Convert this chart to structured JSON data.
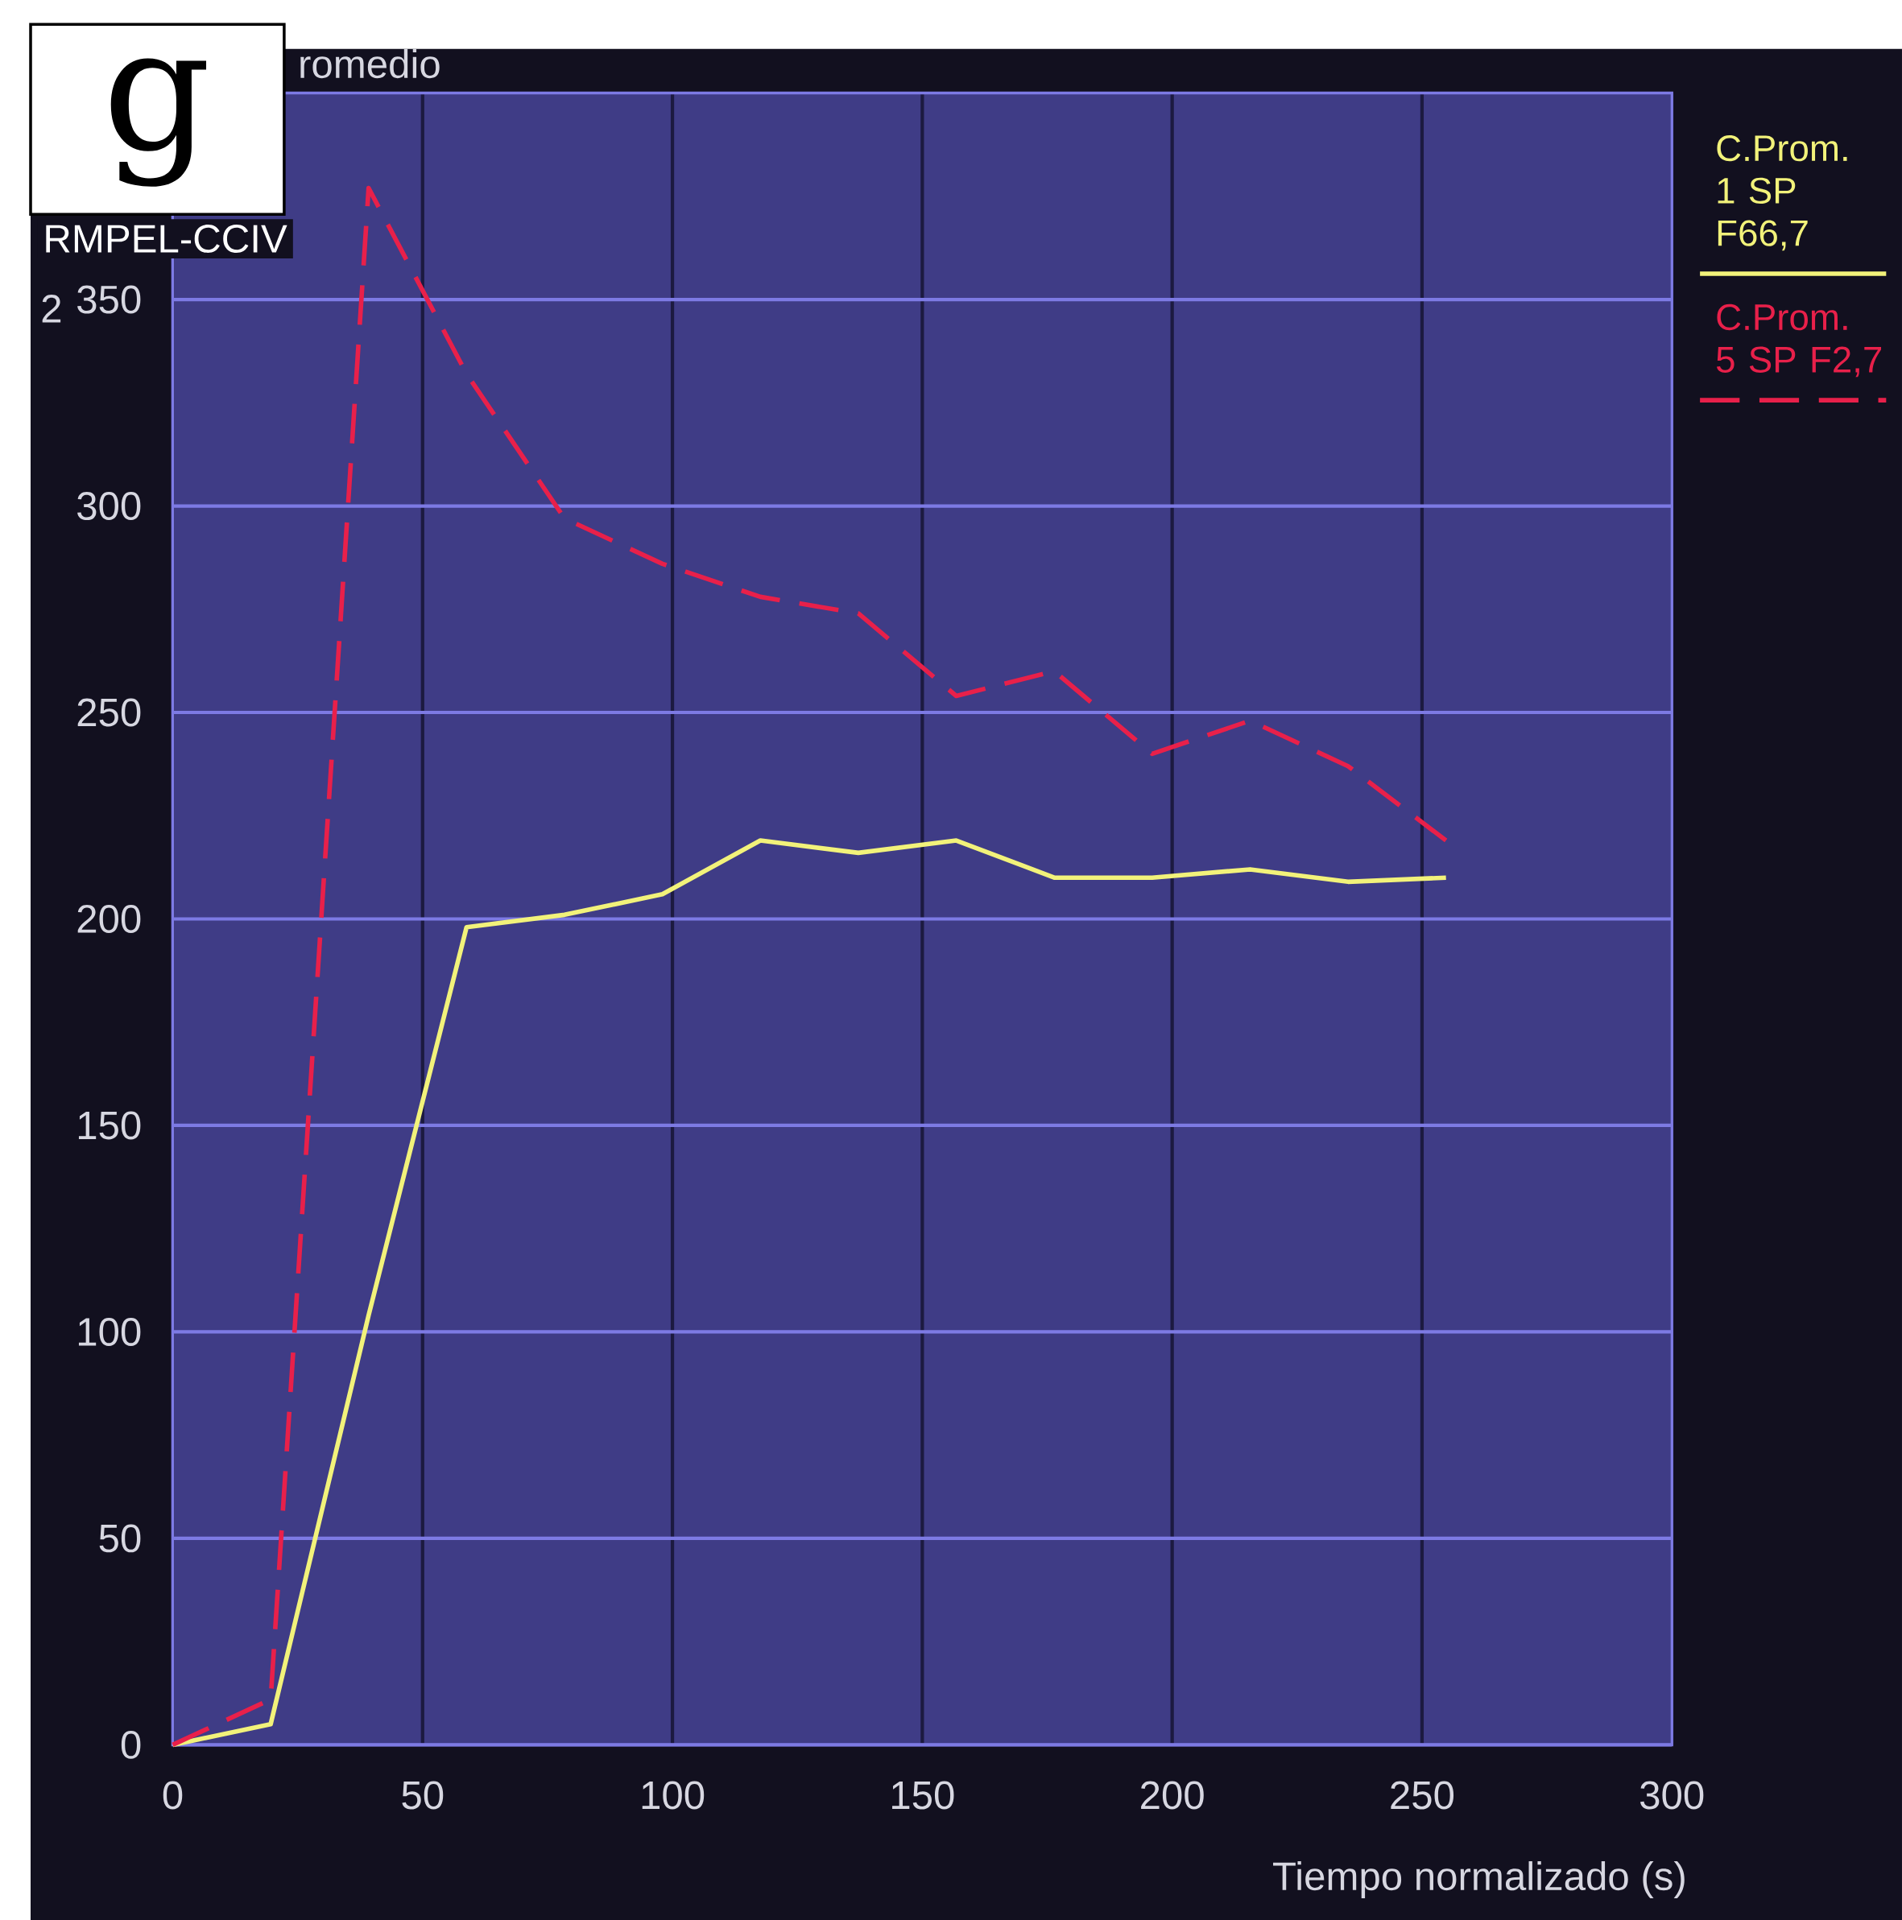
{
  "chart_data": {
    "type": "line",
    "title": "romedio",
    "ylabel": "RMPEL-CCIV",
    "xlabel": "Tiempo normalizado (s)",
    "annotations": [
      "g",
      "2"
    ],
    "x": [
      0,
      19.6,
      39.2,
      58.8,
      78.4,
      98,
      117.6,
      137.2,
      156.8,
      176.4,
      196,
      215.6,
      235.2,
      254.8
    ],
    "series": [
      {
        "name": "C.Prom. 1 SP F66,7",
        "color": "#f2f27a",
        "line_style": "solid",
        "values": [
          0,
          5,
          104,
          198,
          201,
          206,
          219,
          216,
          219,
          210,
          210,
          212,
          209,
          210
        ]
      },
      {
        "name": "C.Prom. 5 SP F2,7",
        "color": "#e8204a",
        "line_style": "dashed",
        "values": [
          0,
          11,
          377,
          332,
          297,
          286,
          278,
          274,
          254,
          260,
          240,
          248,
          237,
          219
        ]
      }
    ],
    "xlim": [
      0,
      300
    ],
    "ylim": [
      0,
      400
    ],
    "xticks": [
      0,
      50,
      100,
      150,
      200,
      250,
      300
    ],
    "yticks": [
      0,
      50,
      100,
      150,
      200,
      250,
      300,
      350
    ],
    "grid": true,
    "legend": "right"
  }
}
